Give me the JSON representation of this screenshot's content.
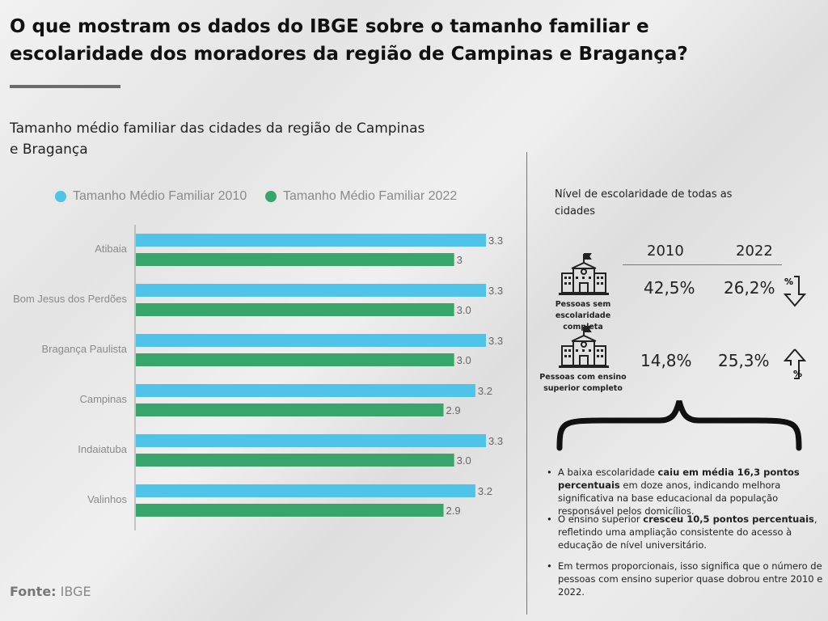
{
  "title": "O que mostram os dados do IBGE sobre o tamanho familiar e escolaridade dos moradores da região de Campinas e Bragança?",
  "chart_title": "Tamanho médio familiar das cidades da região de Campinas e Bragança",
  "colors": {
    "s2010": "#4fc3e8",
    "s2022": "#38a66a"
  },
  "chart_data": {
    "type": "bar",
    "orientation": "horizontal",
    "categories": [
      "Atibaia",
      "Bom Jesus dos Perdões",
      "Bragança Paulista",
      "Campinas",
      "Indaiatuba",
      "Valinhos"
    ],
    "series": [
      {
        "name": "Tamanho Médio Familiar 2010",
        "values": [
          3.3,
          3.3,
          3.3,
          3.2,
          3.3,
          3.2
        ],
        "labels": [
          "3.3",
          "3.3",
          "3.3",
          "3.2",
          "3.3",
          "3.2"
        ]
      },
      {
        "name": "Tamanho Médio Familiar 2022",
        "values": [
          3.0,
          3.0,
          3.0,
          2.9,
          3.0,
          2.9
        ],
        "labels": [
          "3",
          "3.0",
          "3.0",
          "2.9",
          "3.0",
          "2.9"
        ]
      }
    ],
    "xlim": [
      0,
      3.5
    ],
    "grid": false,
    "legend": "top"
  },
  "source": {
    "label": "Fonte:",
    "value": "IBGE"
  },
  "education": {
    "title": "Nível de escolaridade de todas as cidades",
    "years": [
      "2010",
      "2022"
    ],
    "rows": [
      {
        "label": "Pessoas sem escolaridade completa",
        "v2010": "42,5%",
        "v2022": "26,2%",
        "icon": "school-icon",
        "trend": "percent-down-icon"
      },
      {
        "label": "Pessoas com ensino superior completo",
        "v2010": "14,8%",
        "v2022": "25,3%",
        "icon": "school-icon",
        "trend": "percent-up-icon"
      }
    ],
    "bullets": [
      {
        "pre": "A baixa escolaridade ",
        "bold": "caiu em média 16,3 pontos percentuais",
        "post": " em doze anos, indicando melhora significativa na base educacional da população responsável pelos domicílios."
      },
      {
        "pre": "O ensino superior ",
        "bold": "cresceu 10,5 pontos percentuais",
        "post": ", refletindo uma ampliação consistente do acesso à educação de nível universitário."
      },
      {
        "pre": "Em termos proporcionais, isso significa que o número de pessoas com ensino superior quase dobrou entre 2010 e 2022.",
        "bold": "",
        "post": ""
      }
    ]
  }
}
